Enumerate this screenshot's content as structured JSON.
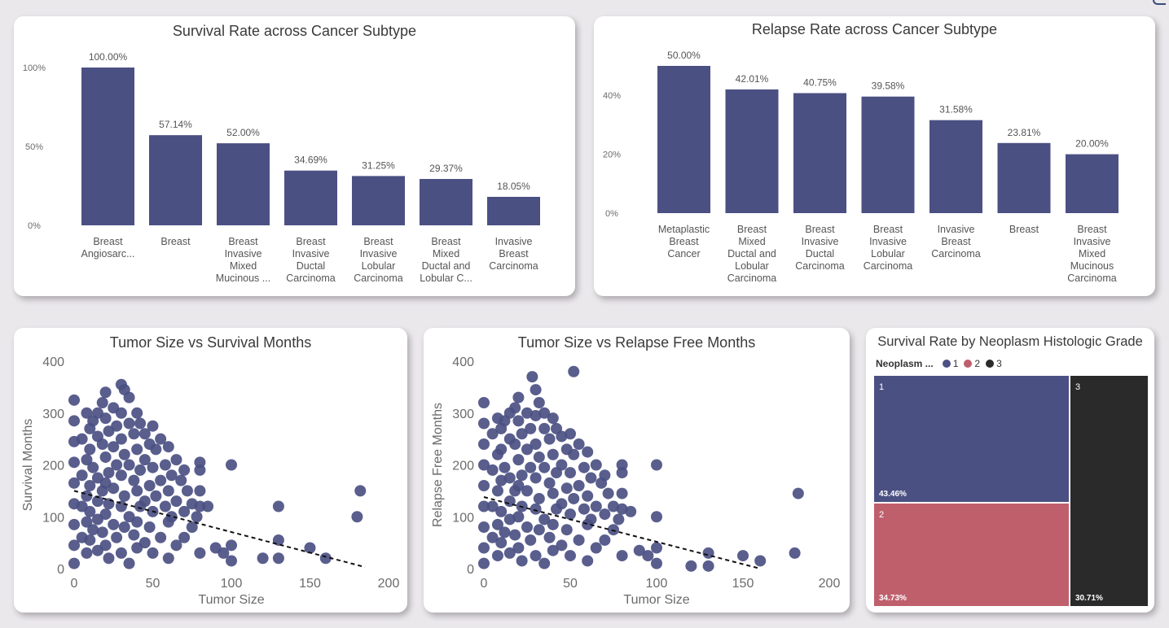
{
  "colors": {
    "bar": "#4b5083",
    "point": "#4b5083",
    "grade1": "#4b5083",
    "grade2": "#bf5f6c",
    "grade3": "#2a2a2a",
    "axis_text": "#6b6b6b"
  },
  "chart_data": [
    {
      "id": "survival-bar",
      "type": "bar",
      "title": "Survival Rate across Cancer Subtype",
      "ylim": [
        0,
        100
      ],
      "yticks": [
        {
          "value": 0,
          "label": "0%"
        },
        {
          "value": 50,
          "label": "50%"
        },
        {
          "value": 100,
          "label": "100%"
        }
      ],
      "categories": [
        [
          "Breast",
          "Angiosarc..."
        ],
        [
          "Breast"
        ],
        [
          "Breast",
          "Invasive",
          "Mixed",
          "Mucinous ..."
        ],
        [
          "Breast",
          "Invasive",
          "Ductal",
          "Carcinoma"
        ],
        [
          "Breast",
          "Invasive",
          "Lobular",
          "Carcinoma"
        ],
        [
          "Breast",
          "Mixed",
          "Ductal and",
          "Lobular C..."
        ],
        [
          "Invasive",
          "Breast",
          "Carcinoma"
        ]
      ],
      "values": [
        100.0,
        57.14,
        52.0,
        34.69,
        31.25,
        29.37,
        18.05
      ],
      "value_labels": [
        "100.00%",
        "57.14%",
        "52.00%",
        "34.69%",
        "31.25%",
        "29.37%",
        "18.05%"
      ]
    },
    {
      "id": "relapse-bar",
      "type": "bar",
      "title": "Relapse Rate across Cancer Subtype",
      "ylim": [
        0,
        50
      ],
      "yticks": [
        {
          "value": 0,
          "label": "0%"
        },
        {
          "value": 20,
          "label": "20%"
        },
        {
          "value": 40,
          "label": "40%"
        }
      ],
      "categories": [
        [
          "Metaplastic",
          "Breast",
          "Cancer"
        ],
        [
          "Breast",
          "Mixed",
          "Ductal and",
          "Lobular",
          "Carcinoma"
        ],
        [
          "Breast",
          "Invasive",
          "Ductal",
          "Carcinoma"
        ],
        [
          "Breast",
          "Invasive",
          "Lobular",
          "Carcinoma"
        ],
        [
          "Invasive",
          "Breast",
          "Carcinoma"
        ],
        [
          "Breast"
        ],
        [
          "Breast",
          "Invasive",
          "Mixed",
          "Mucinous",
          "Carcinoma"
        ]
      ],
      "values": [
        50.0,
        42.01,
        40.75,
        39.58,
        31.58,
        23.81,
        20.0
      ],
      "value_labels": [
        "50.00%",
        "42.01%",
        "40.75%",
        "39.58%",
        "31.58%",
        "23.81%",
        "20.00%"
      ]
    },
    {
      "id": "survival-scatter",
      "type": "scatter",
      "title": "Tumor Size vs Survival Months",
      "xlabel": "Tumor Size",
      "ylabel": "Survival Months",
      "xlim": [
        0,
        200
      ],
      "ylim": [
        0,
        400
      ],
      "xticks": [
        0,
        50,
        100,
        150,
        200
      ],
      "yticks": [
        0,
        100,
        200,
        300,
        400
      ],
      "trend": [
        [
          0,
          150
        ],
        [
          185,
          3
        ]
      ],
      "points": [
        [
          0,
          325
        ],
        [
          0,
          285
        ],
        [
          0,
          245
        ],
        [
          0,
          205
        ],
        [
          0,
          165
        ],
        [
          0,
          125
        ],
        [
          0,
          85
        ],
        [
          0,
          45
        ],
        [
          0,
          10
        ],
        [
          5,
          250
        ],
        [
          5,
          180
        ],
        [
          5,
          120
        ],
        [
          5,
          60
        ],
        [
          8,
          300
        ],
        [
          8,
          210
        ],
        [
          8,
          140
        ],
        [
          8,
          90
        ],
        [
          8,
          30
        ],
        [
          10,
          270
        ],
        [
          10,
          230
        ],
        [
          10,
          160
        ],
        [
          10,
          110
        ],
        [
          10,
          55
        ],
        [
          12,
          285
        ],
        [
          12,
          195
        ],
        [
          12,
          75
        ],
        [
          15,
          300
        ],
        [
          15,
          255
        ],
        [
          15,
          175
        ],
        [
          15,
          130
        ],
        [
          15,
          95
        ],
        [
          15,
          35
        ],
        [
          18,
          320
        ],
        [
          18,
          240
        ],
        [
          18,
          150
        ],
        [
          18,
          70
        ],
        [
          20,
          340
        ],
        [
          20,
          290
        ],
        [
          20,
          215
        ],
        [
          20,
          165
        ],
        [
          20,
          105
        ],
        [
          20,
          45
        ],
        [
          22,
          265
        ],
        [
          22,
          185
        ],
        [
          22,
          125
        ],
        [
          22,
          20
        ],
        [
          25,
          310
        ],
        [
          25,
          235
        ],
        [
          25,
          155
        ],
        [
          25,
          85
        ],
        [
          27,
          275
        ],
        [
          27,
          200
        ],
        [
          27,
          60
        ],
        [
          30,
          355
        ],
        [
          30,
          300
        ],
        [
          30,
          250
        ],
        [
          30,
          180
        ],
        [
          30,
          120
        ],
        [
          30,
          30
        ],
        [
          32,
          345
        ],
        [
          32,
          220
        ],
        [
          32,
          140
        ],
        [
          32,
          80
        ],
        [
          35,
          330
        ],
        [
          35,
          280
        ],
        [
          35,
          200
        ],
        [
          35,
          100
        ],
        [
          35,
          10
        ],
        [
          38,
          260
        ],
        [
          38,
          170
        ],
        [
          38,
          65
        ],
        [
          40,
          300
        ],
        [
          40,
          230
        ],
        [
          40,
          150
        ],
        [
          40,
          90
        ],
        [
          40,
          40
        ],
        [
          42,
          280
        ],
        [
          42,
          190
        ],
        [
          42,
          120
        ],
        [
          45,
          260
        ],
        [
          45,
          210
        ],
        [
          45,
          130
        ],
        [
          45,
          50
        ],
        [
          48,
          240
        ],
        [
          48,
          160
        ],
        [
          48,
          80
        ],
        [
          50,
          275
        ],
        [
          50,
          195
        ],
        [
          50,
          110
        ],
        [
          50,
          30
        ],
        [
          52,
          230
        ],
        [
          52,
          140
        ],
        [
          55,
          250
        ],
        [
          55,
          170
        ],
        [
          55,
          60
        ],
        [
          58,
          200
        ],
        [
          58,
          120
        ],
        [
          60,
          235
        ],
        [
          60,
          150
        ],
        [
          60,
          90
        ],
        [
          60,
          20
        ],
        [
          62,
          180
        ],
        [
          62,
          100
        ],
        [
          65,
          210
        ],
        [
          65,
          130
        ],
        [
          65,
          45
        ],
        [
          68,
          170
        ],
        [
          70,
          190
        ],
        [
          70,
          110
        ],
        [
          70,
          60
        ],
        [
          72,
          150
        ],
        [
          75,
          125
        ],
        [
          75,
          80
        ],
        [
          78,
          100
        ],
        [
          80,
          205
        ],
        [
          80,
          190
        ],
        [
          80,
          150
        ],
        [
          80,
          120
        ],
        [
          80,
          30
        ],
        [
          85,
          120
        ],
        [
          90,
          40
        ],
        [
          95,
          30
        ],
        [
          100,
          200
        ],
        [
          100,
          45
        ],
        [
          100,
          15
        ],
        [
          120,
          20
        ],
        [
          130,
          120
        ],
        [
          130,
          55
        ],
        [
          130,
          20
        ],
        [
          150,
          40
        ],
        [
          160,
          20
        ],
        [
          180,
          100
        ],
        [
          182,
          150
        ]
      ]
    },
    {
      "id": "relapse-scatter",
      "type": "scatter",
      "title": "Tumor Size vs Relapse Free Months",
      "xlabel": "Tumor Size",
      "ylabel": "Relapse Free Months",
      "xlim": [
        0,
        200
      ],
      "ylim": [
        0,
        400
      ],
      "xticks": [
        0,
        50,
        100,
        150,
        200
      ],
      "yticks": [
        0,
        100,
        200,
        300,
        400
      ],
      "trend": [
        [
          0,
          138
        ],
        [
          160,
          0
        ]
      ],
      "points": [
        [
          0,
          320
        ],
        [
          0,
          280
        ],
        [
          0,
          240
        ],
        [
          0,
          200
        ],
        [
          0,
          160
        ],
        [
          0,
          120
        ],
        [
          0,
          80
        ],
        [
          0,
          40
        ],
        [
          0,
          10
        ],
        [
          5,
          260
        ],
        [
          5,
          190
        ],
        [
          5,
          120
        ],
        [
          5,
          60
        ],
        [
          8,
          290
        ],
        [
          8,
          220
        ],
        [
          8,
          150
        ],
        [
          8,
          85
        ],
        [
          8,
          25
        ],
        [
          10,
          270
        ],
        [
          10,
          230
        ],
        [
          10,
          170
        ],
        [
          10,
          110
        ],
        [
          10,
          50
        ],
        [
          12,
          285
        ],
        [
          12,
          195
        ],
        [
          12,
          70
        ],
        [
          15,
          300
        ],
        [
          15,
          250
        ],
        [
          15,
          175
        ],
        [
          15,
          130
        ],
        [
          15,
          95
        ],
        [
          15,
          30
        ],
        [
          18,
          310
        ],
        [
          18,
          240
        ],
        [
          18,
          150
        ],
        [
          18,
          65
        ],
        [
          20,
          330
        ],
        [
          20,
          285
        ],
        [
          20,
          210
        ],
        [
          20,
          160
        ],
        [
          20,
          100
        ],
        [
          20,
          40
        ],
        [
          22,
          260
        ],
        [
          22,
          180
        ],
        [
          22,
          120
        ],
        [
          22,
          15
        ],
        [
          25,
          300
        ],
        [
          25,
          230
        ],
        [
          25,
          150
        ],
        [
          25,
          80
        ],
        [
          27,
          270
        ],
        [
          27,
          195
        ],
        [
          27,
          55
        ],
        [
          28,
          370
        ],
        [
          30,
          345
        ],
        [
          30,
          295
        ],
        [
          30,
          240
        ],
        [
          30,
          175
        ],
        [
          30,
          115
        ],
        [
          30,
          25
        ],
        [
          32,
          320
        ],
        [
          32,
          215
        ],
        [
          32,
          135
        ],
        [
          32,
          75
        ],
        [
          35,
          300
        ],
        [
          35,
          270
        ],
        [
          35,
          195
        ],
        [
          35,
          95
        ],
        [
          35,
          10
        ],
        [
          38,
          250
        ],
        [
          38,
          165
        ],
        [
          38,
          60
        ],
        [
          40,
          290
        ],
        [
          40,
          220
        ],
        [
          40,
          145
        ],
        [
          40,
          85
        ],
        [
          40,
          35
        ],
        [
          42,
          270
        ],
        [
          42,
          185
        ],
        [
          42,
          115
        ],
        [
          45,
          255
        ],
        [
          45,
          200
        ],
        [
          45,
          125
        ],
        [
          45,
          45
        ],
        [
          48,
          230
        ],
        [
          48,
          155
        ],
        [
          48,
          75
        ],
        [
          50,
          260
        ],
        [
          50,
          185
        ],
        [
          50,
          105
        ],
        [
          50,
          25
        ],
        [
          52,
          380
        ],
        [
          52,
          220
        ],
        [
          52,
          135
        ],
        [
          55,
          240
        ],
        [
          55,
          160
        ],
        [
          55,
          55
        ],
        [
          58,
          195
        ],
        [
          58,
          115
        ],
        [
          60,
          225
        ],
        [
          60,
          140
        ],
        [
          60,
          85
        ],
        [
          60,
          15
        ],
        [
          62,
          175
        ],
        [
          62,
          95
        ],
        [
          65,
          200
        ],
        [
          65,
          120
        ],
        [
          65,
          40
        ],
        [
          68,
          165
        ],
        [
          70,
          180
        ],
        [
          70,
          105
        ],
        [
          70,
          55
        ],
        [
          72,
          145
        ],
        [
          75,
          120
        ],
        [
          75,
          75
        ],
        [
          78,
          95
        ],
        [
          80,
          200
        ],
        [
          80,
          185
        ],
        [
          80,
          145
        ],
        [
          80,
          115
        ],
        [
          80,
          25
        ],
        [
          85,
          110
        ],
        [
          90,
          35
        ],
        [
          95,
          25
        ],
        [
          100,
          200
        ],
        [
          100,
          100
        ],
        [
          100,
          40
        ],
        [
          100,
          10
        ],
        [
          120,
          5
        ],
        [
          130,
          30
        ],
        [
          130,
          5
        ],
        [
          150,
          25
        ],
        [
          160,
          15
        ],
        [
          180,
          30
        ],
        [
          182,
          145
        ]
      ]
    },
    {
      "id": "grade-treemap",
      "type": "treemap",
      "title": "Survival Rate by Neoplasm Histologic Grade",
      "legend_title": "Neoplasm ...",
      "items": [
        {
          "name": "1",
          "value": 43.46,
          "label": "43.46%",
          "color": "#4b5083"
        },
        {
          "name": "2",
          "value": 34.73,
          "label": "34.73%",
          "color": "#bf5f6c"
        },
        {
          "name": "3",
          "value": 30.71,
          "label": "30.71%",
          "color": "#2a2a2a"
        }
      ]
    }
  ]
}
